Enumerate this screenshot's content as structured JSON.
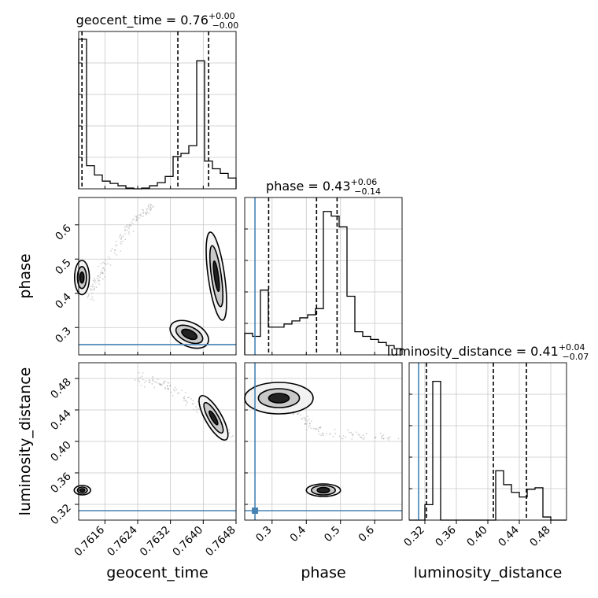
{
  "chart_data": {
    "type": "corner",
    "colors": {
      "truth": "#4682b4",
      "hist": "#000000",
      "grid": "#c8c8c8",
      "samples": "#9a9a9a"
    },
    "parameters": [
      {
        "name": "geocent_time",
        "title_text": "geocent_time = 0.76",
        "sup": "+0.00",
        "sub": "−0.00",
        "range": [
          0.76096,
          0.7648
        ],
        "ticks": [
          0.7616,
          0.7624,
          0.7632,
          0.764,
          0.7648
        ],
        "tick_labels": [
          "0.7616",
          "0.7624",
          "0.7632",
          "0.7640",
          "0.7648"
        ],
        "quantiles": [
          0.76104,
          0.76338,
          0.76413
        ],
        "hist": [
          0.97,
          0.15,
          0.09,
          0.05,
          0.035,
          0.02,
          0.005,
          0.0,
          0.005,
          0.02,
          0.04,
          0.08,
          0.21,
          0.23,
          0.28,
          0.83,
          0.18,
          0.13,
          0.1,
          0.07
        ]
      },
      {
        "name": "phase",
        "title_text": "phase = 0.43",
        "sup": "+0.06",
        "sub": "−0.14",
        "range": [
          0.22,
          0.68
        ],
        "ticks": [
          0.3,
          0.4,
          0.5,
          0.6
        ],
        "tick_labels": [
          "0.3",
          "0.4",
          "0.5",
          "0.6"
        ],
        "quantiles": [
          0.29,
          0.43,
          0.49
        ],
        "truth": 0.25,
        "hist": [
          0.14,
          0.12,
          0.42,
          0.18,
          0.18,
          0.2,
          0.22,
          0.24,
          0.26,
          0.3,
          0.93,
          0.9,
          0.83,
          0.38,
          0.15,
          0.12,
          0.1,
          0.08,
          0.06,
          0.04
        ]
      },
      {
        "name": "luminosity_distance",
        "title_text": "luminosity_distance = 0.41",
        "sup": "+0.04",
        "sub": "−0.07",
        "range": [
          0.3,
          0.5
        ],
        "ticks": [
          0.32,
          0.36,
          0.4,
          0.44,
          0.48
        ],
        "tick_labels": [
          "0.32",
          "0.36",
          "0.40",
          "0.44",
          "0.48"
        ],
        "quantiles": [
          0.322,
          0.407,
          0.449
        ],
        "truth": 0.312,
        "hist": [
          0.0,
          0.0,
          0.1,
          0.9,
          0.0,
          0.0,
          0.0,
          0.0,
          0.0,
          0.0,
          0.0,
          0.32,
          0.23,
          0.18,
          0.15,
          0.2,
          0.21,
          0.02,
          0.0,
          0.0
        ]
      }
    ],
    "pairs": [
      {
        "x": "geocent_time",
        "y": "phase",
        "dense_regions": [
          {
            "name": "left-mode",
            "center": [
              0.76104,
              0.446
            ],
            "levels": [
              [
                0.00018,
                0.05
              ],
              [
                0.00011,
                0.032
              ],
              [
                5e-05,
                0.016
              ]
            ],
            "angle": 0
          },
          {
            "name": "right-mode-upper",
            "center": [
              0.76432,
              0.45
            ],
            "levels": [
              [
                0.0002,
                0.13
              ],
              [
                0.00012,
                0.09
              ],
              [
                5e-05,
                0.045
              ]
            ],
            "angle": -8
          },
          {
            "name": "right-mode-lower",
            "center": [
              0.76366,
              0.28
            ],
            "levels": [
              [
                0.0005,
                0.035
              ],
              [
                0.00035,
                0.022
              ],
              [
                0.0002,
                0.012
              ]
            ],
            "angle": 25
          }
        ],
        "scatter_band": [
          [
            0.7612,
            0.39
          ],
          [
            0.7616,
            0.48
          ],
          [
            0.7622,
            0.6
          ],
          [
            0.7628,
            0.66
          ]
        ]
      },
      {
        "x": "geocent_time",
        "y": "luminosity_distance",
        "dense_regions": [
          {
            "name": "left-mode",
            "center": [
              0.76105,
              0.338
            ],
            "levels": [
              [
                0.0002,
                0.006
              ],
              [
                0.00012,
                0.004
              ],
              [
                6e-05,
                0.002
              ]
            ],
            "angle": 0
          },
          {
            "name": "right-mode",
            "center": [
              0.76425,
              0.43
            ],
            "levels": [
              [
                0.0002,
                0.032
              ],
              [
                0.00012,
                0.022
              ],
              [
                5e-05,
                0.01
              ]
            ],
            "angle": -30
          }
        ],
        "scatter_band": [
          [
            0.7624,
            0.48
          ],
          [
            0.7632,
            0.47
          ],
          [
            0.764,
            0.44
          ],
          [
            0.7648,
            0.405
          ]
        ]
      },
      {
        "x": "phase",
        "y": "luminosity_distance",
        "dense_regions": [
          {
            "name": "upper-band",
            "center": [
              0.32,
              0.455
            ],
            "levels": [
              [
                0.1,
                0.02
              ],
              [
                0.06,
                0.012
              ],
              [
                0.03,
                0.006
              ]
            ],
            "angle": 0
          },
          {
            "name": "lower-blob",
            "center": [
              0.45,
              0.338
            ],
            "levels": [
              [
                0.05,
                0.008
              ],
              [
                0.035,
                0.006
              ],
              [
                0.018,
                0.0035
              ]
            ],
            "angle": 0
          }
        ],
        "scatter_band": [
          [
            0.22,
            0.47
          ],
          [
            0.35,
            0.44
          ],
          [
            0.45,
            0.41
          ],
          [
            0.68,
            0.405
          ]
        ]
      }
    ]
  }
}
